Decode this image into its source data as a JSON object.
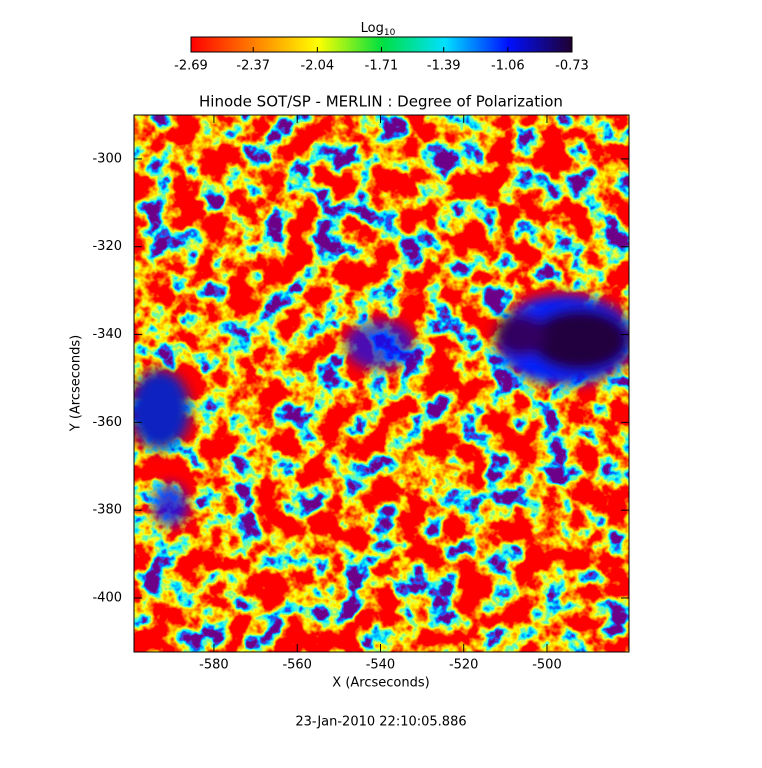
{
  "chart_data": {
    "type": "heatmap",
    "title": "Hinode SOT/SP - MERLIN : Degree of Polarization",
    "x_label": "X (Arcseconds)",
    "y_label": "Y (Arcseconds)",
    "xlim": [
      -599.2,
      -480.3
    ],
    "xticks": [
      -580,
      -560,
      -540,
      -520,
      -500
    ],
    "ylim": [
      -412.3,
      -290
    ],
    "yticks": [
      -400,
      -380,
      -360,
      -340,
      -320,
      -300
    ],
    "colorbar": {
      "title": "Log",
      "title_subscript": "10",
      "lim": [
        -2.69,
        -0.73
      ],
      "ticks": [
        -2.69,
        -2.37,
        -2.04,
        -1.71,
        -1.39,
        -1.06,
        -0.73
      ],
      "colormap": [
        "#ff0000",
        "#ff8000",
        "#ffff00",
        "#00e040",
        "#00e0ff",
        "#0010ff",
        "#200030"
      ]
    },
    "footer": "23-Jan-2010 22:10:05.886"
  }
}
